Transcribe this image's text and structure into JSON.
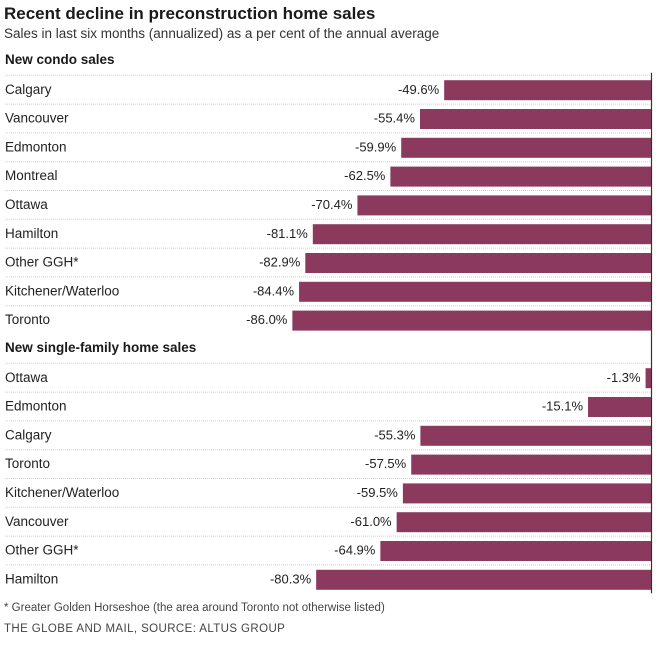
{
  "title": "Recent decline in preconstruction home sales",
  "subtitle": "Sales in last six months (annualized) as a per cent of the annual average",
  "footnote": "* Greater Golden Horseshoe (the area around Toronto not otherwise listed)",
  "source": "THE GLOBE AND MAIL, SOURCE: ALTUS GROUP",
  "colors": {
    "bar": "#8b3a5e",
    "divider": "#cfcfcf",
    "axis": "#333333"
  },
  "chart_data": {
    "type": "bar",
    "orientation": "horizontal",
    "value_format": "percent",
    "xlim": [
      -100,
      0
    ],
    "groups": [
      {
        "title": "New condo sales",
        "categories": [
          "Calgary",
          "Vancouver",
          "Edmonton",
          "Montreal",
          "Ottawa",
          "Hamilton",
          "Other GGH*",
          "Kitchener/Waterloo",
          "Toronto"
        ],
        "values": [
          -49.6,
          -55.4,
          -59.9,
          -62.5,
          -70.4,
          -81.1,
          -82.9,
          -84.4,
          -86.0
        ],
        "labels": [
          "-49.6%",
          "-55.4%",
          "-59.9%",
          "-62.5%",
          "-70.4%",
          "-81.1%",
          "-82.9%",
          "-84.4%",
          "-86.0%"
        ]
      },
      {
        "title": "New single-family home sales",
        "categories": [
          "Ottawa",
          "Edmonton",
          "Calgary",
          "Toronto",
          "Kitchener/Waterloo",
          "Vancouver",
          "Other GGH*",
          "Hamilton"
        ],
        "values": [
          -1.3,
          -15.1,
          -55.3,
          -57.5,
          -59.5,
          -61.0,
          -64.9,
          -80.3
        ],
        "labels": [
          "-1.3%",
          "-15.1%",
          "-55.3%",
          "-57.5%",
          "-59.5%",
          "-61.0%",
          "-64.9%",
          "-80.3%"
        ]
      }
    ]
  }
}
